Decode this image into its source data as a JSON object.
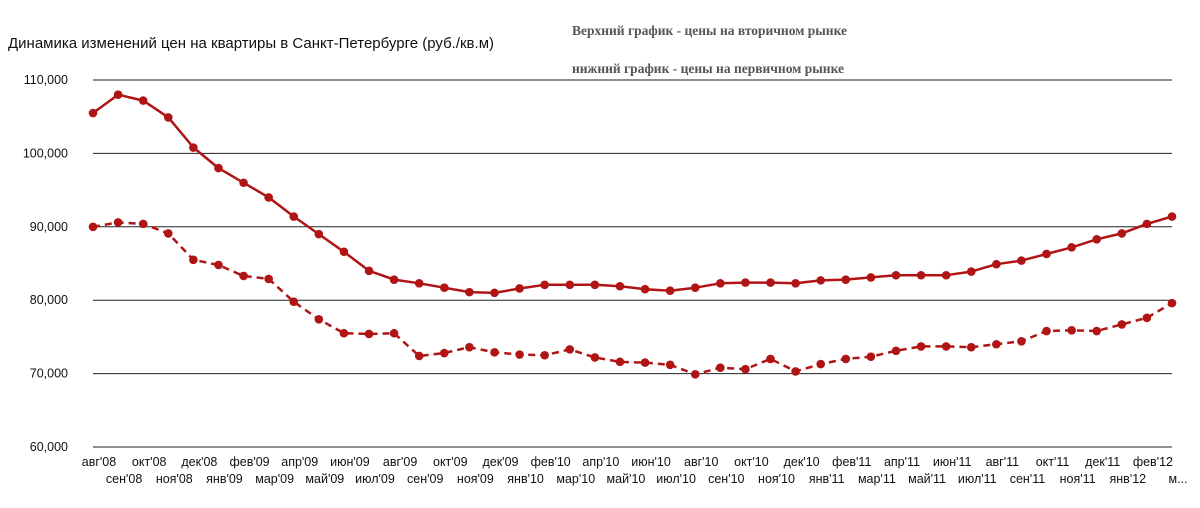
{
  "chart_data": {
    "type": "line",
    "title": "Динамика изменений цен на квартиры в Санкт-Петербурге (руб./кв.м)",
    "annotations": [
      "Верхний график - цены на вторичном рынке",
      "нижний график - цены на первичном рынке"
    ],
    "ylim": [
      60000,
      110000
    ],
    "yticks": [
      "60,000",
      "70,000",
      "80,000",
      "90,000",
      "100,000",
      "110,000"
    ],
    "ytick_values": [
      60000,
      70000,
      80000,
      90000,
      100000,
      110000
    ],
    "grid": true,
    "legend": "none",
    "colors": {
      "line": "#b01414",
      "grid": "#222222",
      "text": "#111111",
      "note": "#555555"
    },
    "categories": [
      "авг'08",
      "сен'08",
      "окт'08",
      "ноя'08",
      "дек'08",
      "янв'09",
      "фев'09",
      "мар'09",
      "апр'09",
      "май'09",
      "июн'09",
      "июл'09",
      "авг'09",
      "сен'09",
      "окт'09",
      "ноя'09",
      "дек'09",
      "янв'10",
      "фев'10",
      "мар'10",
      "апр'10",
      "май'10",
      "июн'10",
      "июл'10",
      "авг'10",
      "сен'10",
      "окт'10",
      "ноя'10",
      "дек'10",
      "янв'11",
      "фев'11",
      "мар'11",
      "апр'11",
      "май'11",
      "июн'11",
      "июл'11",
      "авг'11",
      "сен'11",
      "окт'11",
      "ноя'11",
      "дек'11",
      "янв'12",
      "фев'12",
      "м..."
    ],
    "series": [
      {
        "style": "solid",
        "values": [
          105500,
          108000,
          107200,
          104900,
          100800,
          98000,
          96000,
          94000,
          91400,
          89000,
          86600,
          84000,
          82800,
          82300,
          81700,
          81100,
          81000,
          81600,
          82100,
          82100,
          82100,
          81900,
          81500,
          81300,
          81700,
          82300,
          82400,
          82400,
          82300,
          82700,
          82800,
          83100,
          83400,
          83400,
          83400,
          83900,
          84900,
          85400,
          86300,
          87200,
          88300,
          89100,
          90400,
          91400
        ]
      },
      {
        "style": "dashed",
        "values": [
          90000,
          90600,
          90400,
          89100,
          85500,
          84800,
          83300,
          82900,
          79800,
          77400,
          75500,
          75400,
          75500,
          72400,
          72800,
          73600,
          72900,
          72600,
          72500,
          73300,
          72200,
          71600,
          71500,
          71200,
          69900,
          70800,
          70600,
          72000,
          70300,
          71300,
          72000,
          72300,
          73100,
          73700,
          73700,
          73600,
          74000,
          74400,
          75800,
          75900,
          75800,
          76700,
          77600,
          79600
        ]
      }
    ]
  }
}
